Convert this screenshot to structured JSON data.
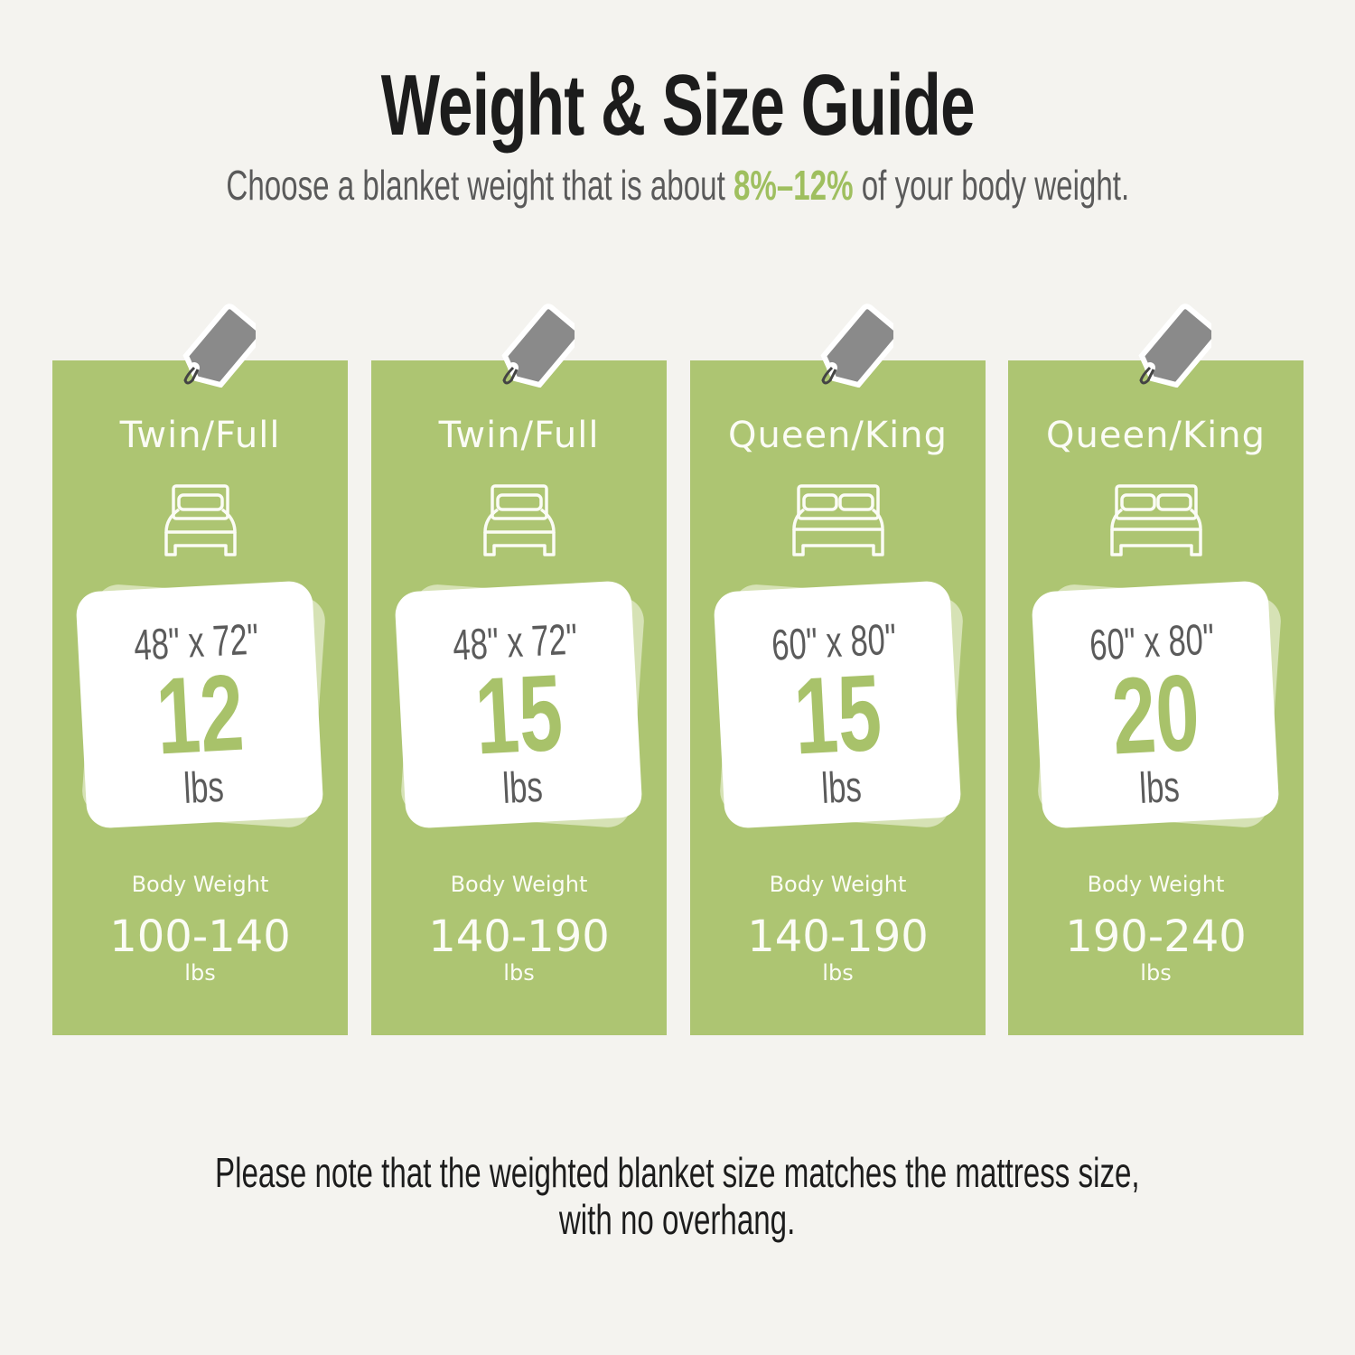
{
  "header": {
    "title": "Weight & Size Guide",
    "subtitle_before": "Choose a blanket weight that is about ",
    "subtitle_highlight": "8%–12%",
    "subtitle_after": " of your body weight."
  },
  "colors": {
    "background": "#f4f3ef",
    "card_green": "#adc572",
    "accent_green": "#a8c26a",
    "tag_gray": "#8a8a8a"
  },
  "cards": [
    {
      "bed_size": "Twin/Full",
      "bed_icon": "single-bed-icon",
      "dimensions": "48\" x 72\"",
      "weight": "12",
      "weight_unit": "lbs",
      "body_weight_label": "Body Weight",
      "body_weight": "100-140",
      "body_weight_unit": "lbs"
    },
    {
      "bed_size": "Twin/Full",
      "bed_icon": "single-bed-icon",
      "dimensions": "48\" x 72\"",
      "weight": "15",
      "weight_unit": "lbs",
      "body_weight_label": "Body Weight",
      "body_weight": "140-190",
      "body_weight_unit": "lbs"
    },
    {
      "bed_size": "Queen/King",
      "bed_icon": "double-bed-icon",
      "dimensions": "60\" x 80\"",
      "weight": "15",
      "weight_unit": "lbs",
      "body_weight_label": "Body Weight",
      "body_weight": "140-190",
      "body_weight_unit": "lbs"
    },
    {
      "bed_size": "Queen/King",
      "bed_icon": "double-bed-icon",
      "dimensions": "60\" x 80\"",
      "weight": "20",
      "weight_unit": "lbs",
      "body_weight_label": "Body Weight",
      "body_weight": "190-240",
      "body_weight_unit": "lbs"
    }
  ],
  "footer": {
    "note_line1": "Please note that the weighted blanket size matches the mattress size,",
    "note_line2": "with no overhang."
  }
}
